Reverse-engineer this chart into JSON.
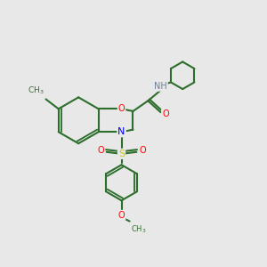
{
  "bg_color": "#e8e8e8",
  "bond_color": "#2d6e2d",
  "atom_colors": {
    "O": "#ff0000",
    "N": "#0000ff",
    "S": "#cccc00",
    "H": "#708090",
    "C": "#2d6e2d"
  },
  "bond_width": 1.5,
  "xlim": [
    0,
    10
  ],
  "ylim": [
    0,
    10
  ]
}
